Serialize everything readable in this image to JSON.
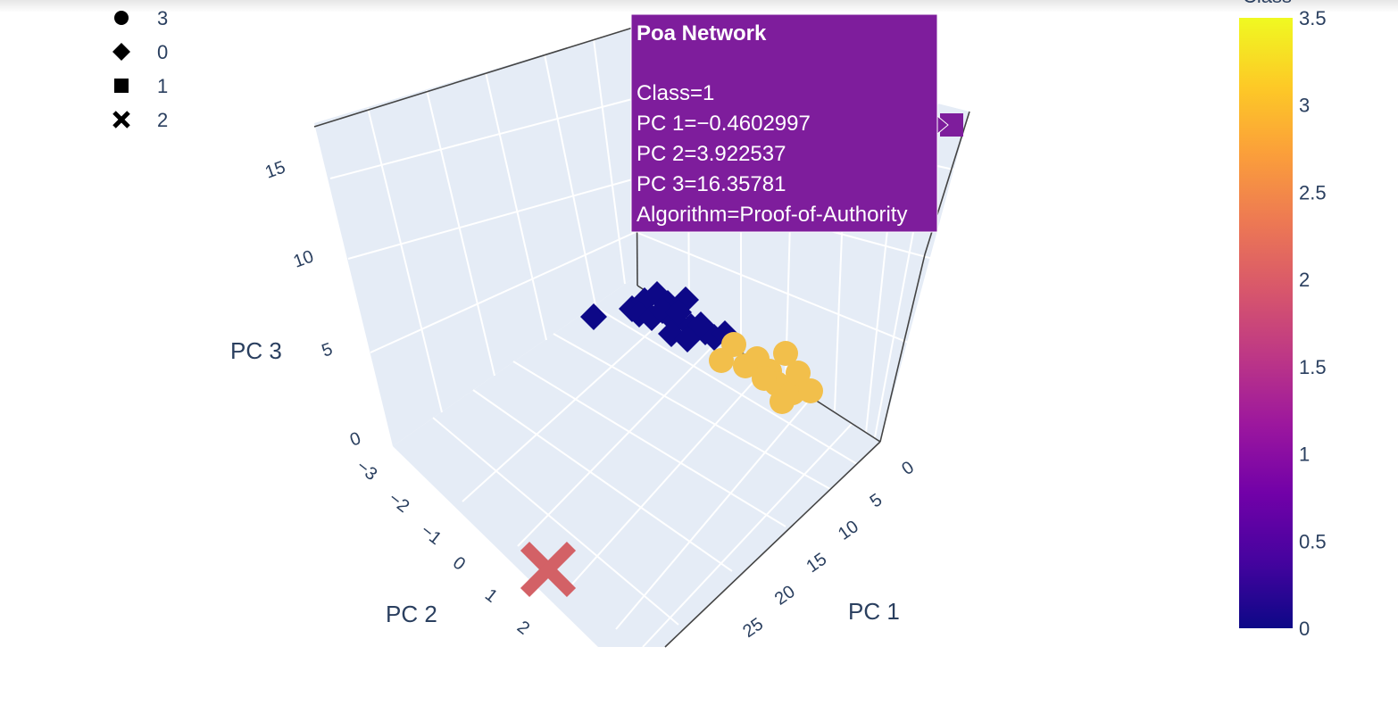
{
  "chart_data": {
    "type": "scatter",
    "dimensions": 3,
    "axes": {
      "x": {
        "title": "PC 1",
        "ticks": [
          "0",
          "5",
          "10",
          "15",
          "20",
          "25"
        ]
      },
      "y": {
        "title": "PC 2",
        "ticks": [
          "−3",
          "−2",
          "−1",
          "0",
          "1",
          "2"
        ]
      },
      "z": {
        "title": "PC 3",
        "ticks": [
          "0",
          "5",
          "10",
          "15"
        ]
      }
    },
    "color_axis": {
      "title": "Class",
      "range": [
        0,
        3.5
      ],
      "ticks": [
        "0",
        "0.5",
        "1",
        "1.5",
        "2",
        "2.5",
        "3",
        "3.5"
      ],
      "colorscale": [
        "#0d0887",
        "#46039f",
        "#7201a8",
        "#9c179e",
        "#bd3786",
        "#d8576b",
        "#ed7953",
        "#fb9f3a",
        "#fdca26",
        "#f0f921"
      ]
    },
    "legend": {
      "placement": "top-left",
      "items": [
        {
          "label": "3",
          "symbol": "circle"
        },
        {
          "label": "0",
          "symbol": "diamond"
        },
        {
          "label": "1",
          "symbol": "square"
        },
        {
          "label": "2",
          "symbol": "x"
        }
      ]
    },
    "series": [
      {
        "class": 0,
        "symbol": "diamond",
        "color": "#0d0887"
      },
      {
        "class": 3,
        "symbol": "circle",
        "color": "#f2bf4b"
      },
      {
        "class": 2,
        "symbol": "x",
        "color": "#d36166"
      },
      {
        "class": 1,
        "symbol": "square",
        "color": "#7e1d9c"
      }
    ],
    "hover": {
      "title": "Poa Network",
      "lines": [
        "Class=1",
        "PC 1=−0.4602997",
        "PC 2=3.922537",
        "PC 3=16.35781",
        "Algorithm=Proof-of-Authority"
      ],
      "background": "#7e1d9c"
    }
  }
}
